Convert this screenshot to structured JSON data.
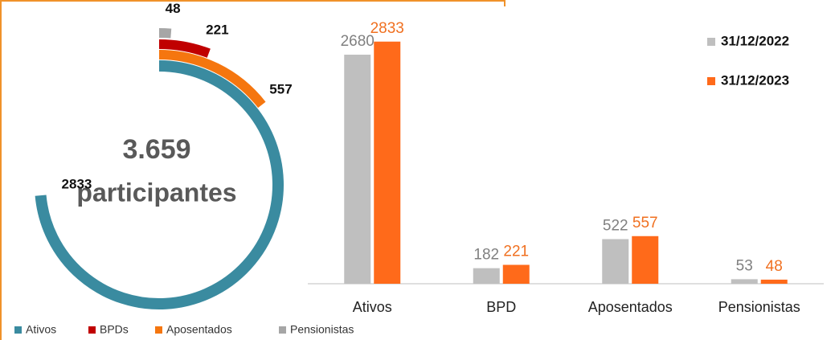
{
  "chart_data": [
    {
      "type": "radial_bar",
      "center_label": "3.659",
      "center_sublabel": "participantes",
      "categories": [
        "Ativos",
        "BPDs",
        "Aposentados",
        "Pensionistas"
      ],
      "values": [
        2833,
        221,
        557,
        48
      ],
      "colors": [
        "#3a8ba0",
        "#c00000",
        "#f5760f",
        "#a6a6a6"
      ],
      "angle_range": [
        0,
        3850
      ],
      "legend": "bottom"
    },
    {
      "type": "bar",
      "categories": [
        "Ativos",
        "BPD",
        "Aposentados",
        "Pensionistas"
      ],
      "series": [
        {
          "name": "31/12/2022",
          "color": "#bfbfbf",
          "label_color": "#808080",
          "values": [
            2680,
            182,
            522,
            53
          ]
        },
        {
          "name": "31/12/2023",
          "color": "#ff6a1a",
          "label_color": "#f07020",
          "values": [
            2833,
            221,
            557,
            48
          ]
        }
      ],
      "ylim": [
        0,
        3000
      ],
      "legend": "top-right"
    }
  ]
}
